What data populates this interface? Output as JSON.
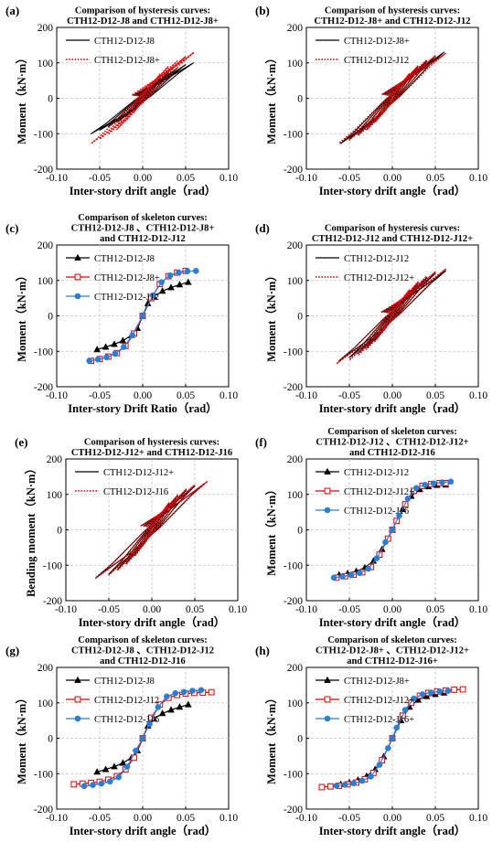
{
  "chart_data": [
    {
      "panel": "(a)",
      "type": "line",
      "curve": "hysteresis",
      "title": [
        "Comparison of hysteresis curves:",
        "CTH12-D12-J8 and CTH12-D12-J8+"
      ],
      "xlabel": "Inter-story drift angle（rad）",
      "ylabel": "Moment（kN·m）",
      "xlim": [
        -0.1,
        0.1
      ],
      "ylim": [
        -200,
        200
      ],
      "xticks": [
        "-0.10",
        "-0.05",
        "0.00",
        "0.05",
        "0.10"
      ],
      "yticks": [
        "200",
        "100",
        "0",
        "-100",
        "-200"
      ],
      "grid": true,
      "legend": "top-left",
      "series": [
        {
          "name": "CTH12-D12-J8",
          "style": "solid",
          "color": "#000000",
          "peaks": [
            [
              0.01,
              30,
              -0.01,
              -28
            ],
            [
              0.02,
              55,
              -0.02,
              -52
            ],
            [
              0.03,
              72,
              -0.03,
              -68
            ],
            [
              0.04,
              85,
              -0.04,
              -80
            ],
            [
              0.05,
              95,
              -0.05,
              -90
            ],
            [
              0.059,
              100,
              -0.06,
              -100
            ]
          ]
        },
        {
          "name": "CTH12-D12-J8+",
          "style": "dotted",
          "color": "#e00000",
          "peaks": [
            [
              0.01,
              38,
              -0.01,
              -38
            ],
            [
              0.02,
              68,
              -0.02,
              -65
            ],
            [
              0.03,
              90,
              -0.03,
              -88
            ],
            [
              0.04,
              105,
              -0.04,
              -102
            ],
            [
              0.05,
              118,
              -0.05,
              -115
            ],
            [
              0.06,
              130,
              -0.06,
              -128
            ]
          ]
        }
      ]
    },
    {
      "panel": "(b)",
      "type": "line",
      "curve": "hysteresis",
      "title": [
        "Comparison of hysteresis curves:",
        "CTH12-D12-J8+ and CTH12-D12-J12"
      ],
      "xlabel": "Inter-story drift angle（rad）",
      "ylabel": "Moment（kN·m）",
      "xlim": [
        -0.1,
        0.1
      ],
      "ylim": [
        -200,
        200
      ],
      "xticks": [
        "-0.10",
        "-0.05",
        "0.00",
        "0.05",
        "0.10"
      ],
      "yticks": [
        "200",
        "100",
        "0",
        "-100",
        "-200"
      ],
      "grid": true,
      "legend": "top-left",
      "series": [
        {
          "name": "CTH12-D12-J8+",
          "style": "solid",
          "color": "#000000",
          "peaks": [
            [
              0.01,
              38,
              -0.01,
              -38
            ],
            [
              0.02,
              68,
              -0.02,
              -65
            ],
            [
              0.03,
              90,
              -0.03,
              -88
            ],
            [
              0.04,
              105,
              -0.04,
              -102
            ],
            [
              0.05,
              118,
              -0.05,
              -115
            ],
            [
              0.06,
              130,
              -0.06,
              -128
            ]
          ]
        },
        {
          "name": "CTH12-D12-J12",
          "style": "dotted",
          "color": "#e00000",
          "peaks": [
            [
              0.01,
              40,
              -0.01,
              -40
            ],
            [
              0.02,
              70,
              -0.02,
              -68
            ],
            [
              0.03,
              92,
              -0.03,
              -90
            ],
            [
              0.04,
              108,
              -0.04,
              -106
            ],
            [
              0.05,
              120,
              -0.05,
              -118
            ],
            [
              0.062,
              127,
              -0.062,
              -127
            ]
          ]
        }
      ]
    },
    {
      "panel": "(c)",
      "type": "line",
      "curve": "skeleton",
      "title": [
        "Comparison of skeleton curves:",
        "CTH12-D12-J8 、CTH12-D12-J8+",
        "and CTH12-D12-J12"
      ],
      "xlabel": "Inter-story Drift Ratio（rad）",
      "ylabel": "Moment（kN·m）",
      "xlim": [
        -0.1,
        0.1
      ],
      "ylim": [
        -200,
        200
      ],
      "xticks": [
        "-0.10",
        "-0.05",
        "0.00",
        "0.05",
        "0.10"
      ],
      "yticks": [
        "200",
        "100",
        "0",
        "-100",
        "-200"
      ],
      "grid": true,
      "legend": "top-left",
      "series": [
        {
          "name": "CTH12-D12-J8",
          "marker": "triangle",
          "color": "#000000",
          "x": [
            -0.053,
            -0.043,
            -0.033,
            -0.023,
            -0.013,
            -0.006,
            0,
            0.006,
            0.013,
            0.023,
            0.033,
            0.043,
            0.053
          ],
          "y": [
            -95,
            -88,
            -80,
            -70,
            -55,
            -35,
            0,
            35,
            55,
            70,
            80,
            88,
            95
          ]
        },
        {
          "name": "CTH12-D12-J8+",
          "marker": "square",
          "color": "#e00000",
          "x": [
            -0.06,
            -0.05,
            -0.04,
            -0.03,
            -0.02,
            -0.01,
            0,
            0.01,
            0.02,
            0.03,
            0.04,
            0.05
          ],
          "y": [
            -127,
            -122,
            -115,
            -105,
            -85,
            -50,
            0,
            50,
            90,
            112,
            122,
            127
          ]
        },
        {
          "name": "CTH12-D12-J12",
          "marker": "circle",
          "color": "#2a7fd4",
          "x": [
            -0.062,
            -0.052,
            -0.042,
            -0.032,
            -0.022,
            -0.012,
            0,
            0.012,
            0.022,
            0.032,
            0.042,
            0.052,
            0.062
          ],
          "y": [
            -127,
            -123,
            -117,
            -107,
            -88,
            -55,
            0,
            58,
            95,
            114,
            122,
            126,
            127
          ]
        }
      ]
    },
    {
      "panel": "(d)",
      "type": "line",
      "curve": "hysteresis",
      "title": [
        "Comparison of hysteresis curves:",
        "CTH12-D12-J12 and CTH12-D12-J12+"
      ],
      "xlabel": "Inter-story drift angle（rad）",
      "ylabel": "Moment（kN·m）",
      "xlim": [
        -0.1,
        0.1
      ],
      "ylim": [
        -200,
        200
      ],
      "xticks": [
        "-0.10",
        "-0.05",
        "0.00",
        "0.05",
        "0.10"
      ],
      "yticks": [
        "200",
        "100",
        "0",
        "-100",
        "-200"
      ],
      "grid": true,
      "legend": "top-left",
      "series": [
        {
          "name": "CTH12-D12-J12",
          "style": "solid",
          "color": "#000000",
          "peaks": [
            [
              0.01,
              40,
              -0.01,
              -40
            ],
            [
              0.02,
              70,
              -0.02,
              -68
            ],
            [
              0.03,
              92,
              -0.03,
              -90
            ],
            [
              0.04,
              108,
              -0.04,
              -106
            ],
            [
              0.05,
              120,
              -0.05,
              -118
            ],
            [
              0.062,
              127,
              -0.062,
              -127
            ]
          ]
        },
        {
          "name": "CTH12-D12-J12+",
          "style": "dotted",
          "color": "#e00000",
          "peaks": [
            [
              0.01,
              42,
              -0.01,
              -42
            ],
            [
              0.02,
              74,
              -0.02,
              -72
            ],
            [
              0.03,
              96,
              -0.03,
              -95
            ],
            [
              0.04,
              112,
              -0.04,
              -112
            ],
            [
              0.05,
              124,
              -0.05,
              -125
            ],
            [
              0.062,
              132,
              -0.065,
              -135
            ]
          ]
        }
      ]
    },
    {
      "panel": "(e)",
      "type": "line",
      "curve": "hysteresis",
      "title": [
        "Comparison of hysteresis curves:",
        "CTH12-D12-J12+ and CTH12-D12-J16"
      ],
      "xlabel": "Inter-story drift angle（rad）",
      "ylabel": "Bending moment（kN·m）",
      "xlim": [
        -0.1,
        0.1
      ],
      "ylim": [
        -200,
        200
      ],
      "xticks": [
        "-0.10",
        "-0.05",
        "0.00",
        "0.05",
        "0.10"
      ],
      "yticks": [
        "200",
        "100",
        "0",
        "-100",
        "-200"
      ],
      "grid": true,
      "legend": "top-left",
      "series": [
        {
          "name": "CTH12-D12-J12+",
          "style": "solid",
          "color": "#000000",
          "peaks": [
            [
              0.01,
              42,
              -0.01,
              -42
            ],
            [
              0.02,
              74,
              -0.02,
              -72
            ],
            [
              0.03,
              96,
              -0.03,
              -95
            ],
            [
              0.04,
              112,
              -0.04,
              -112
            ],
            [
              0.05,
              124,
              -0.05,
              -125
            ],
            [
              0.062,
              132,
              -0.065,
              -135
            ]
          ]
        },
        {
          "name": "CTH12-D12-J16",
          "style": "dotted",
          "color": "#e00000",
          "peaks": [
            [
              0.01,
              44,
              -0.01,
              -44
            ],
            [
              0.02,
              76,
              -0.02,
              -75
            ],
            [
              0.03,
              98,
              -0.03,
              -98
            ],
            [
              0.04,
              115,
              -0.04,
              -115
            ],
            [
              0.05,
              127,
              -0.05,
              -128
            ],
            [
              0.065,
              137,
              -0.065,
              -137
            ]
          ]
        }
      ]
    },
    {
      "panel": "(f)",
      "type": "line",
      "curve": "skeleton",
      "title": [
        "Comparison of skeleton curves:",
        "CTH12-D12-J12 、CTH12-D12-J12+",
        "and CTH12-D12-J16"
      ],
      "xlabel": "Inter-story drift angle（rad）",
      "ylabel": "Moment（kN·m）",
      "xlim": [
        -0.1,
        0.1
      ],
      "ylim": [
        -200,
        200
      ],
      "xticks": [
        "-0.10",
        "-0.05",
        "0.00",
        "0.05",
        "0.10"
      ],
      "yticks": [
        "200",
        "100",
        "0",
        "-100",
        "-200"
      ],
      "grid": true,
      "legend": "top-left",
      "series": [
        {
          "name": "CTH12-D12-J12",
          "marker": "triangle",
          "color": "#000000",
          "x": [
            -0.062,
            -0.052,
            -0.042,
            -0.032,
            -0.022,
            -0.012,
            0,
            0.012,
            0.022,
            0.032,
            0.042,
            0.052,
            0.062
          ],
          "y": [
            -127,
            -123,
            -117,
            -107,
            -88,
            -55,
            0,
            58,
            95,
            114,
            122,
            126,
            127
          ]
        },
        {
          "name": "CTH12-D12-J12+",
          "marker": "square",
          "color": "#e00000",
          "x": [
            -0.065,
            -0.055,
            -0.045,
            -0.035,
            -0.025,
            -0.015,
            -0.005,
            0,
            0.005,
            0.015,
            0.025,
            0.035,
            0.045,
            0.055,
            0.062
          ],
          "y": [
            -135,
            -131,
            -127,
            -120,
            -105,
            -70,
            -25,
            0,
            25,
            72,
            110,
            124,
            129,
            132,
            132
          ]
        },
        {
          "name": "CTH12-D12-J16",
          "marker": "circle",
          "color": "#2a7fd4",
          "x": [
            -0.068,
            -0.058,
            -0.048,
            -0.038,
            -0.028,
            -0.018,
            -0.008,
            0,
            0.008,
            0.018,
            0.028,
            0.038,
            0.048,
            0.058,
            0.068
          ],
          "y": [
            -135,
            -132,
            -128,
            -122,
            -110,
            -80,
            -35,
            0,
            40,
            88,
            118,
            127,
            131,
            134,
            136
          ]
        }
      ]
    },
    {
      "panel": "(g)",
      "type": "line",
      "curve": "skeleton",
      "title": [
        "Comparison of skeleton curves:",
        "CTH12-D12-J8 、CTH12-D12-J12",
        "and CTH12-D12-J16"
      ],
      "xlabel": "Inter-story drift angle（rad）",
      "ylabel": "Moment（kN·m）",
      "xlim": [
        -0.1,
        0.1
      ],
      "ylim": [
        -200,
        200
      ],
      "xticks": [
        "-0.10",
        "-0.05",
        "0.00",
        "0.05",
        "0.10"
      ],
      "yticks": [
        "200",
        "100",
        "0",
        "-100",
        "-200"
      ],
      "grid": true,
      "legend": "top-left",
      "series": [
        {
          "name": "CTH12-D12-J8",
          "marker": "triangle",
          "color": "#000000",
          "x": [
            -0.053,
            -0.043,
            -0.033,
            -0.023,
            -0.013,
            -0.006,
            0,
            0.006,
            0.013,
            0.023,
            0.033,
            0.043,
            0.053
          ],
          "y": [
            -95,
            -88,
            -80,
            -70,
            -55,
            -35,
            0,
            35,
            55,
            70,
            80,
            88,
            95
          ]
        },
        {
          "name": "CTH12-D12-J12",
          "marker": "square",
          "color": "#e00000",
          "x": [
            -0.08,
            -0.07,
            -0.06,
            -0.05,
            -0.04,
            -0.03,
            -0.02,
            -0.01,
            0,
            0.01,
            0.02,
            0.03,
            0.04,
            0.05,
            0.06,
            0.07,
            0.08
          ],
          "y": [
            -130,
            -128,
            -126,
            -123,
            -117,
            -107,
            -88,
            -55,
            0,
            58,
            95,
            114,
            122,
            126,
            128,
            129,
            130
          ]
        },
        {
          "name": "CTH12-D12-J16",
          "marker": "circle",
          "color": "#2a7fd4",
          "x": [
            -0.068,
            -0.058,
            -0.048,
            -0.038,
            -0.028,
            -0.018,
            -0.008,
            0,
            0.008,
            0.018,
            0.028,
            0.038,
            0.048,
            0.058,
            0.068
          ],
          "y": [
            -135,
            -132,
            -128,
            -122,
            -110,
            -80,
            -35,
            0,
            40,
            88,
            118,
            127,
            131,
            134,
            136
          ]
        }
      ]
    },
    {
      "panel": "(h)",
      "type": "line",
      "curve": "skeleton",
      "title": [
        "Comparison of skeleton curves:",
        "CTH12-D12-J8+ 、CTH12-D12-J12+",
        "and CTH12-D12-J16+"
      ],
      "xlabel": "Inter-story drift angle（rad）",
      "ylabel": "Moment（kN·m）",
      "xlim": [
        -0.1,
        0.1
      ],
      "ylim": [
        -200,
        200
      ],
      "xticks": [
        "-0.10",
        "-0.05",
        "0.00",
        "0.05",
        "0.10"
      ],
      "yticks": [
        "200",
        "100",
        "0",
        "-100",
        "-200"
      ],
      "grid": true,
      "legend": "top-left",
      "series": [
        {
          "name": "CTH12-D12-J8+",
          "marker": "triangle",
          "color": "#000000",
          "x": [
            -0.06,
            -0.05,
            -0.04,
            -0.03,
            -0.02,
            -0.01,
            0,
            0.01,
            0.02,
            0.03,
            0.04,
            0.05,
            0.06
          ],
          "y": [
            -130,
            -125,
            -118,
            -107,
            -88,
            -52,
            0,
            50,
            88,
            108,
            118,
            124,
            128
          ]
        },
        {
          "name": "CTH12-D12-J12+",
          "marker": "square",
          "color": "#e00000",
          "x": [
            -0.082,
            -0.072,
            -0.062,
            -0.052,
            -0.042,
            -0.032,
            -0.022,
            -0.012,
            0,
            0.012,
            0.022,
            0.032,
            0.042,
            0.052,
            0.062,
            0.072,
            0.082
          ],
          "y": [
            -138,
            -136,
            -134,
            -130,
            -125,
            -116,
            -98,
            -62,
            0,
            64,
            100,
            120,
            128,
            132,
            135,
            137,
            138
          ]
        },
        {
          "name": "CTH12-D12-J16+",
          "marker": "circle",
          "color": "#2a7fd4",
          "x": [
            -0.065,
            -0.055,
            -0.045,
            -0.035,
            -0.025,
            -0.015,
            -0.005,
            0,
            0.005,
            0.015,
            0.025,
            0.035,
            0.045,
            0.055,
            0.065
          ],
          "y": [
            -134,
            -131,
            -127,
            -120,
            -108,
            -75,
            -28,
            0,
            30,
            80,
            112,
            124,
            129,
            132,
            134
          ]
        }
      ]
    }
  ]
}
